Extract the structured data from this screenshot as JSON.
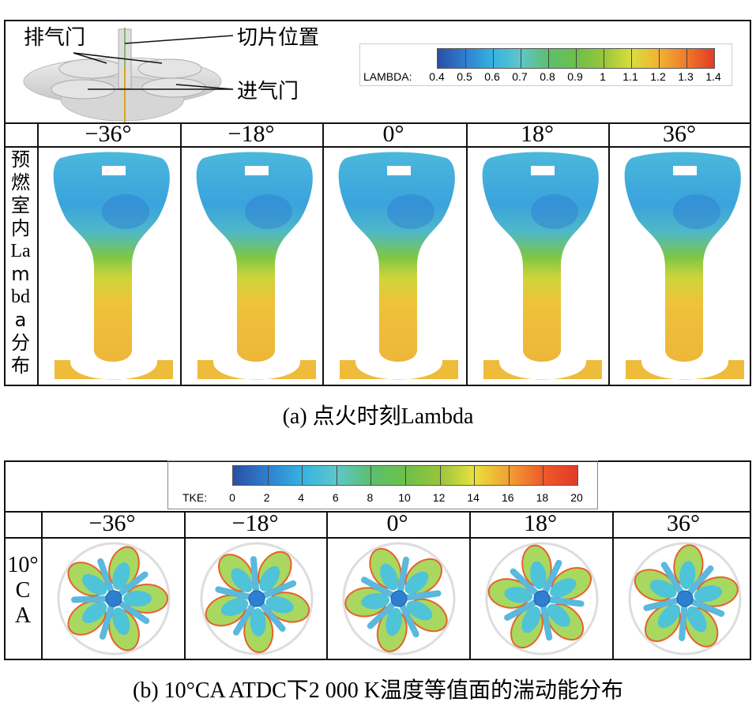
{
  "panel_a": {
    "labels": {
      "exhaust_valve": "排气门",
      "slice_position": "切片位置",
      "intake_valve": "进气门"
    },
    "colorbar": {
      "label": "LAMBDA:",
      "ticks": [
        "0.4",
        "0.5",
        "0.6",
        "0.7",
        "0.8",
        "0.9",
        "1",
        "1.1",
        "1.2",
        "1.3",
        "1.4"
      ],
      "colors": [
        "#2a4fa3",
        "#2f7fd0",
        "#35b3e0",
        "#5fc7c9",
        "#5cbf6e",
        "#6cc04a",
        "#98c53c",
        "#d9de3c",
        "#f2b233",
        "#ef7a2a",
        "#e23b26"
      ]
    },
    "angles": [
      "−36°",
      "−18°",
      "0°",
      "18°",
      "36°"
    ],
    "row_label": [
      "预",
      "燃",
      "室",
      "内",
      "La",
      "m",
      "bd",
      "a",
      "分",
      "布"
    ],
    "caption": "(a) 点火时刻Lambda"
  },
  "panel_b": {
    "colorbar": {
      "label": "TKE:",
      "ticks": [
        "0",
        "2",
        "4",
        "6",
        "8",
        "10",
        "12",
        "14",
        "16",
        "18",
        "20"
      ],
      "colors": [
        "#2a4fa3",
        "#2f7fd0",
        "#35b3e0",
        "#5fc7c9",
        "#5cbf6e",
        "#6cc04a",
        "#98c53c",
        "#e8e23c",
        "#f2a033",
        "#ee5a2a",
        "#e23b26"
      ]
    },
    "angles": [
      "−36°",
      "−18°",
      "0°",
      "18°",
      "36°"
    ],
    "row_label": [
      "10°",
      "C",
      "A"
    ],
    "caption": "(b) 10°CA ATDC下2 000 K温度等值面的湍动能分布"
  }
}
